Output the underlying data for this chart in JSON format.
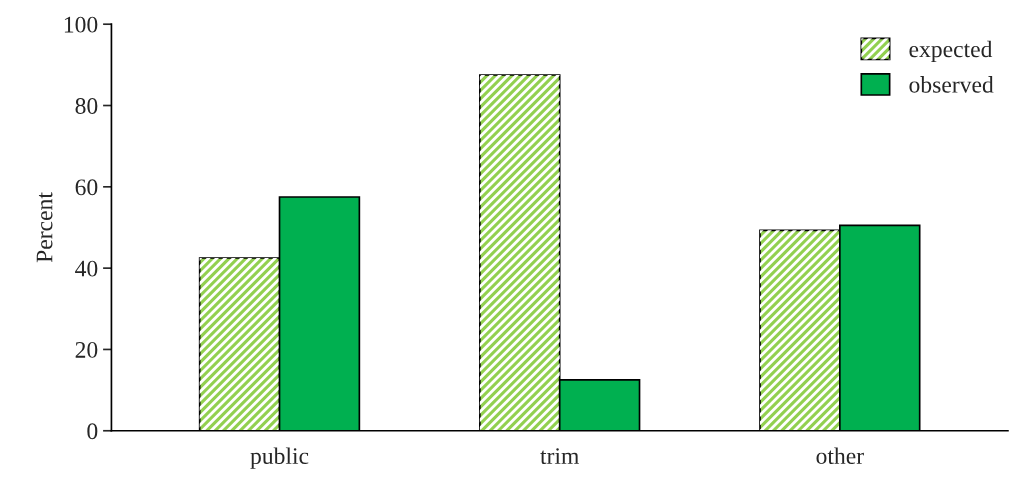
{
  "chart_data": {
    "type": "bar",
    "ylabel": "Percent",
    "categories": [
      "public",
      "trim",
      "other"
    ],
    "series": [
      {
        "name": "expected",
        "color": "#92d050",
        "values": [
          42.5,
          87.5,
          49.3
        ]
      },
      {
        "name": "observed",
        "color": "#00b050",
        "values": [
          57.5,
          12.5,
          50.5
        ]
      }
    ],
    "ylim": [
      0,
      100
    ],
    "yticks": [
      0,
      20,
      40,
      60,
      80,
      100
    ],
    "grid": false,
    "legend": "top right"
  }
}
